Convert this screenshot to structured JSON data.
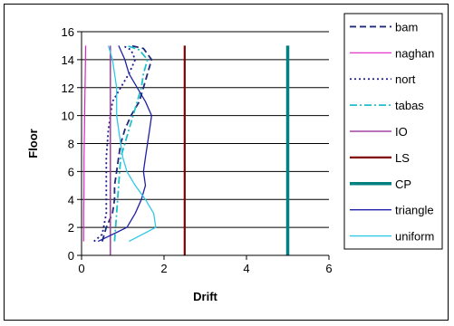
{
  "chart_data": {
    "type": "line",
    "title": "",
    "xlabel": "Drift",
    "ylabel": "Floor",
    "xlim": [
      0,
      6
    ],
    "ylim": [
      0,
      16
    ],
    "xticks": [
      "0",
      "2",
      "4",
      "6"
    ],
    "yticks": [
      "0",
      "2",
      "4",
      "6",
      "8",
      "10",
      "12",
      "14",
      "16"
    ],
    "grid": "horizontal",
    "legend_position": "right",
    "series": [
      {
        "name": "bam",
        "color": "#1f2a7a",
        "dash": "7,4",
        "width": 1.8,
        "points": [
          [
            0.5,
            1
          ],
          [
            0.6,
            2
          ],
          [
            0.75,
            3
          ],
          [
            0.8,
            4
          ],
          [
            0.8,
            5
          ],
          [
            0.85,
            6
          ],
          [
            0.9,
            7
          ],
          [
            0.95,
            8
          ],
          [
            1.05,
            9
          ],
          [
            1.2,
            10
          ],
          [
            1.4,
            11
          ],
          [
            1.5,
            12
          ],
          [
            1.6,
            13
          ],
          [
            1.7,
            14
          ],
          [
            1.5,
            14.8
          ],
          [
            1.2,
            15
          ]
        ]
      },
      {
        "name": "naghan",
        "color": "#e020c8",
        "dash": "",
        "width": 1.2,
        "points": [
          [
            0.05,
            1
          ],
          [
            0.05,
            3
          ],
          [
            0.06,
            5
          ],
          [
            0.06,
            7
          ],
          [
            0.07,
            9
          ],
          [
            0.08,
            11
          ],
          [
            0.09,
            13
          ],
          [
            0.1,
            15
          ]
        ]
      },
      {
        "name": "nort",
        "color": "#1c1c8c",
        "dash": "2,3",
        "width": 1.8,
        "points": [
          [
            0.3,
            1
          ],
          [
            0.5,
            1.5
          ],
          [
            0.6,
            3
          ],
          [
            0.6,
            5
          ],
          [
            0.6,
            7
          ],
          [
            0.65,
            9
          ],
          [
            0.75,
            11
          ],
          [
            0.95,
            12
          ],
          [
            1.15,
            13
          ],
          [
            1.3,
            14
          ],
          [
            1.2,
            14.7
          ],
          [
            1.0,
            15
          ]
        ]
      },
      {
        "name": "tabas",
        "color": "#20c0c8",
        "dash": "8,3,2,3",
        "width": 1.8,
        "points": [
          [
            0.8,
            1
          ],
          [
            0.85,
            3
          ],
          [
            0.9,
            5
          ],
          [
            0.95,
            7
          ],
          [
            1.05,
            8
          ],
          [
            1.15,
            9
          ],
          [
            1.25,
            10
          ],
          [
            1.35,
            11
          ],
          [
            1.45,
            12
          ],
          [
            1.5,
            13
          ],
          [
            1.6,
            14
          ],
          [
            1.4,
            14.7
          ],
          [
            1.1,
            15
          ]
        ]
      },
      {
        "name": "IO",
        "color": "#a040a0",
        "dash": "",
        "width": 1.5,
        "points": [
          [
            0.7,
            0
          ],
          [
            0.7,
            15
          ]
        ]
      },
      {
        "name": "LS",
        "color": "#800000",
        "dash": "",
        "width": 2.2,
        "points": [
          [
            2.5,
            0
          ],
          [
            2.5,
            15
          ]
        ]
      },
      {
        "name": "CP",
        "color": "#008080",
        "dash": "",
        "width": 3.5,
        "points": [
          [
            5,
            0
          ],
          [
            5,
            15
          ]
        ]
      },
      {
        "name": "triangle",
        "color": "#2020a8",
        "dash": "",
        "width": 1.3,
        "points": [
          [
            0.4,
            1
          ],
          [
            1.1,
            2
          ],
          [
            1.3,
            3
          ],
          [
            1.45,
            4
          ],
          [
            1.55,
            5
          ],
          [
            1.5,
            6
          ],
          [
            1.55,
            7
          ],
          [
            1.6,
            8
          ],
          [
            1.65,
            9
          ],
          [
            1.7,
            10
          ],
          [
            1.55,
            11
          ],
          [
            1.35,
            12
          ],
          [
            1.15,
            13
          ],
          [
            1.05,
            14
          ],
          [
            0.9,
            15
          ]
        ]
      },
      {
        "name": "uniform",
        "color": "#30c8e8",
        "dash": "",
        "width": 1.3,
        "points": [
          [
            1.15,
            1
          ],
          [
            1.8,
            2
          ],
          [
            1.75,
            3
          ],
          [
            1.55,
            4
          ],
          [
            1.3,
            5
          ],
          [
            1.1,
            6
          ],
          [
            1.0,
            7
          ],
          [
            0.95,
            8
          ],
          [
            0.9,
            9
          ],
          [
            0.85,
            10
          ],
          [
            0.85,
            11
          ],
          [
            0.85,
            12
          ],
          [
            0.8,
            13
          ],
          [
            0.75,
            14
          ],
          [
            0.65,
            15
          ]
        ]
      }
    ]
  }
}
